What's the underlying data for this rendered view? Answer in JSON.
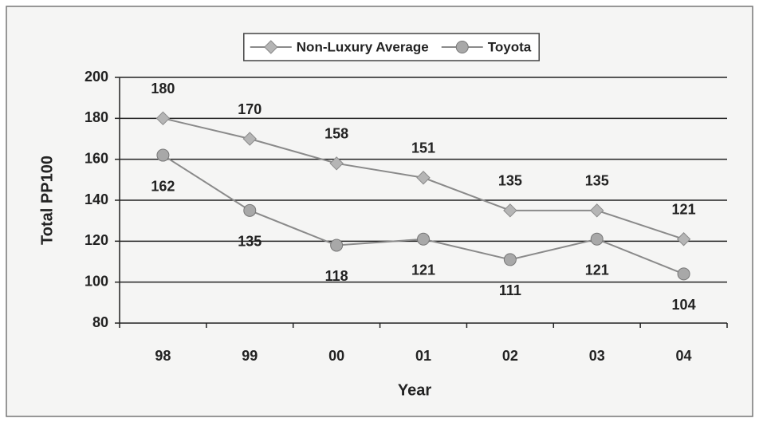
{
  "chart_data": {
    "type": "line",
    "categories": [
      "98",
      "99",
      "00",
      "01",
      "02",
      "03",
      "04"
    ],
    "series": [
      {
        "name": "Non-Luxury Average",
        "color": "#8a8a8a",
        "marker": "diamond",
        "values": [
          180,
          170,
          158,
          151,
          135,
          135,
          121
        ]
      },
      {
        "name": "Toyota",
        "color": "#8a8a8a",
        "marker": "circle",
        "values": [
          162,
          135,
          118,
          121,
          111,
          121,
          104
        ]
      }
    ],
    "xlabel": "Year",
    "ylabel": "Total PP100",
    "ylim": [
      80,
      200
    ],
    "yticks": [
      80,
      100,
      120,
      140,
      160,
      180,
      200
    ],
    "grid": true,
    "legend": "top"
  }
}
